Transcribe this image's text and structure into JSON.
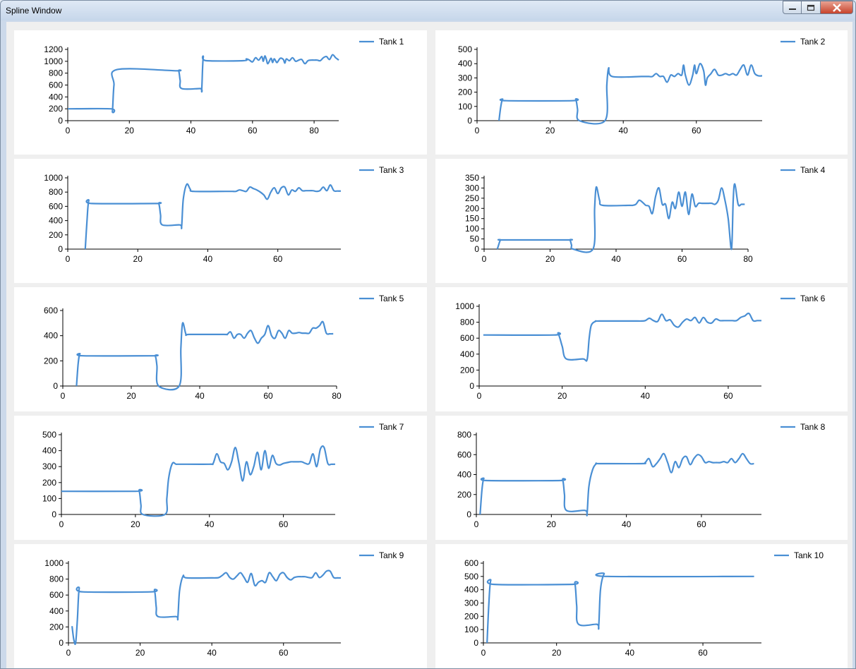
{
  "window": {
    "title": "Spline Window",
    "controls": {
      "minimize_icon": "minimize-icon",
      "maximize_icon": "maximize-icon",
      "close_icon": "close-icon"
    }
  },
  "colors": {
    "series": "#4a8fd4",
    "axis": "#000000",
    "panel": "#ffffff",
    "client": "#efefef"
  },
  "chart_data": [
    {
      "type": "line",
      "title": "",
      "series": [
        {
          "name": "Tank 1",
          "x": [
            0,
            14,
            14.5,
            15,
            16,
            35,
            36,
            36.5,
            37,
            43,
            43.5,
            44,
            45,
            57,
            58,
            59,
            60,
            61,
            62,
            63,
            63.5,
            64,
            64.5,
            65,
            66,
            66.5,
            67,
            67.5,
            68,
            69,
            70,
            70.5,
            71,
            72,
            73,
            74,
            75,
            76,
            77,
            78,
            79,
            80,
            81,
            82,
            83,
            84,
            85,
            86,
            87,
            88
          ],
          "y": [
            200,
            200,
            160,
            600,
            860,
            840,
            840,
            680,
            540,
            540,
            520,
            1060,
            1010,
            1010,
            1040,
            1020,
            990,
            1060,
            1020,
            1080,
            1000,
            1090,
            1030,
            960,
            1050,
            980,
            1040,
            1010,
            980,
            1050,
            1030,
            970,
            1040,
            1010,
            1060,
            1000,
            1020,
            1030,
            960,
            1010,
            1020,
            1020,
            1020,
            1010,
            1060,
            1080,
            1030,
            1110,
            1060,
            1020
          ]
        }
      ],
      "xlim": [
        0,
        88
      ],
      "ylim": [
        0,
        1200
      ],
      "xticks": [
        0,
        20,
        40,
        60,
        80
      ],
      "yticks": [
        0,
        200,
        400,
        600,
        800,
        1000,
        1200
      ]
    },
    {
      "type": "line",
      "title": "",
      "series": [
        {
          "name": "Tank 2",
          "x": [
            6,
            6.5,
            7,
            8,
            26,
            27,
            27.5,
            28,
            35,
            35.5,
            36,
            37,
            45,
            46,
            47,
            48,
            49,
            50,
            51,
            52,
            53,
            54,
            55,
            56,
            56.5,
            57,
            58,
            59,
            59.5,
            60,
            61,
            62,
            62.5,
            63,
            64,
            65,
            66,
            67,
            68,
            69,
            70,
            71,
            72,
            73,
            74,
            75,
            76,
            77,
            78
          ],
          "y": [
            0,
            100,
            150,
            140,
            140,
            150,
            80,
            0,
            0,
            250,
            370,
            310,
            310,
            310,
            310,
            310,
            330,
            310,
            310,
            270,
            320,
            310,
            330,
            320,
            390,
            320,
            250,
            320,
            390,
            330,
            400,
            350,
            250,
            300,
            330,
            360,
            320,
            320,
            330,
            320,
            330,
            320,
            360,
            390,
            320,
            390,
            330,
            315,
            315
          ]
        }
      ],
      "xlim": [
        0,
        78
      ],
      "ylim": [
        0,
        500
      ],
      "xticks": [
        0,
        20,
        40,
        60
      ],
      "yticks": [
        0,
        100,
        200,
        300,
        400,
        500
      ]
    },
    {
      "type": "line",
      "title": "",
      "series": [
        {
          "name": "Tank 3",
          "x": [
            5,
            5.5,
            6,
            7,
            25,
            26,
            26.5,
            27,
            32,
            32.5,
            33,
            34,
            35,
            36,
            45,
            46,
            47,
            48,
            49,
            50,
            51,
            52,
            53,
            54,
            55,
            56,
            57,
            58,
            59,
            60,
            61,
            62,
            63,
            64,
            65,
            66,
            67,
            68,
            69,
            70,
            71,
            72,
            73,
            74,
            75,
            76,
            77,
            78
          ],
          "y": [
            0,
            400,
            680,
            640,
            640,
            640,
            480,
            340,
            340,
            310,
            700,
            910,
            840,
            810,
            810,
            810,
            810,
            810,
            830,
            820,
            810,
            870,
            850,
            830,
            800,
            760,
            700,
            800,
            860,
            780,
            860,
            870,
            760,
            830,
            810,
            860,
            820,
            820,
            820,
            820,
            810,
            820,
            870,
            820,
            900,
            820,
            815,
            815
          ]
        }
      ],
      "xlim": [
        0,
        78
      ],
      "ylim": [
        0,
        1000
      ],
      "xticks": [
        0,
        20,
        40,
        60
      ],
      "yticks": [
        0,
        200,
        400,
        600,
        800,
        1000
      ]
    },
    {
      "type": "line",
      "title": "",
      "series": [
        {
          "name": "Tank 4",
          "x": [
            4,
            4.5,
            5,
            6,
            25,
            26,
            26.5,
            27,
            33,
            33.5,
            34,
            35,
            36,
            44,
            45,
            46,
            47,
            48,
            49,
            50,
            51,
            52,
            53,
            54,
            55,
            56,
            57,
            58,
            59,
            60,
            61,
            62,
            63,
            64,
            65,
            66,
            67,
            68,
            69,
            70,
            71,
            72,
            73,
            74,
            75,
            75.5,
            76,
            77,
            78,
            79
          ],
          "y": [
            0,
            25,
            45,
            45,
            45,
            45,
            20,
            0,
            0,
            200,
            305,
            240,
            215,
            215,
            215,
            220,
            240,
            230,
            215,
            210,
            175,
            260,
            300,
            220,
            220,
            150,
            230,
            200,
            280,
            210,
            280,
            170,
            270,
            210,
            225,
            225,
            225,
            225,
            225,
            220,
            240,
            300,
            240,
            150,
            0,
            240,
            320,
            220,
            220,
            220
          ]
        }
      ],
      "xlim": [
        0,
        80
      ],
      "ylim": [
        0,
        350
      ],
      "xticks": [
        0,
        20,
        40,
        60,
        80
      ],
      "yticks": [
        0,
        50,
        100,
        150,
        200,
        250,
        300,
        350
      ]
    },
    {
      "type": "line",
      "title": "",
      "series": [
        {
          "name": "Tank 5",
          "x": [
            4,
            4.5,
            5,
            6,
            26,
            27,
            27.5,
            28,
            34,
            34.5,
            35,
            36,
            37,
            47,
            48,
            49,
            50,
            51,
            52,
            53,
            54,
            55,
            56,
            57,
            58,
            59,
            60,
            61,
            62,
            63,
            64,
            65,
            66,
            67,
            68,
            69,
            70,
            71,
            72,
            73,
            74,
            75,
            76,
            77,
            78,
            79
          ],
          "y": [
            0,
            180,
            255,
            240,
            240,
            240,
            160,
            0,
            0,
            300,
            500,
            410,
            410,
            410,
            410,
            430,
            380,
            410,
            410,
            380,
            420,
            440,
            380,
            340,
            380,
            410,
            480,
            400,
            380,
            440,
            420,
            380,
            440,
            420,
            420,
            425,
            420,
            420,
            420,
            460,
            460,
            480,
            510,
            420,
            415,
            415
          ]
        }
      ],
      "xlim": [
        0,
        80
      ],
      "ylim": [
        0,
        600
      ],
      "xticks": [
        0,
        20,
        40,
        60,
        80
      ],
      "yticks": [
        0,
        200,
        400,
        600
      ]
    },
    {
      "type": "line",
      "title": "",
      "series": [
        {
          "name": "Tank 6",
          "x": [
            1,
            18,
            19,
            20,
            21,
            25,
            26,
            26.5,
            27,
            28,
            29,
            38,
            39,
            40,
            41,
            42,
            43,
            44,
            45,
            46,
            47,
            48,
            49,
            50,
            51,
            52,
            53,
            54,
            55,
            56,
            57,
            58,
            59,
            60,
            61,
            62,
            63,
            64,
            65,
            66,
            67,
            68
          ],
          "y": [
            640,
            640,
            660,
            500,
            340,
            340,
            330,
            600,
            760,
            810,
            815,
            815,
            815,
            820,
            850,
            820,
            810,
            900,
            820,
            830,
            760,
            740,
            800,
            840,
            820,
            860,
            790,
            860,
            800,
            790,
            840,
            820,
            820,
            820,
            820,
            820,
            860,
            880,
            910,
            820,
            820,
            820
          ]
        }
      ],
      "xlim": [
        0,
        68
      ],
      "ylim": [
        0,
        1000
      ],
      "xticks": [
        0,
        20,
        40,
        60
      ],
      "yticks": [
        0,
        200,
        400,
        600,
        800,
        1000
      ]
    },
    {
      "type": "line",
      "title": "",
      "series": [
        {
          "name": "Tank 7",
          "x": [
            0,
            20,
            21,
            21.5,
            22,
            28,
            28.5,
            29,
            30,
            31,
            32,
            40,
            41,
            42,
            43,
            44,
            45,
            46,
            47,
            48,
            49,
            50,
            51,
            52,
            53,
            54,
            55,
            56,
            57,
            58,
            59,
            60,
            61,
            62,
            63,
            64,
            65,
            66,
            67,
            68,
            69,
            70,
            71,
            72,
            73,
            74
          ],
          "y": [
            145,
            145,
            150,
            60,
            0,
            0,
            100,
            230,
            320,
            315,
            315,
            315,
            320,
            380,
            330,
            320,
            280,
            330,
            420,
            320,
            210,
            330,
            250,
            300,
            390,
            280,
            400,
            290,
            370,
            320,
            310,
            320,
            325,
            330,
            330,
            330,
            330,
            320,
            320,
            380,
            300,
            410,
            420,
            320,
            315,
            315
          ]
        }
      ],
      "xlim": [
        0,
        74
      ],
      "ylim": [
        0,
        500
      ],
      "xticks": [
        0,
        20,
        40,
        60
      ],
      "yticks": [
        0,
        100,
        200,
        300,
        400,
        500
      ]
    },
    {
      "type": "line",
      "title": "",
      "series": [
        {
          "name": "Tank 8",
          "x": [
            1,
            1.5,
            2,
            3,
            22,
            23,
            23.5,
            24,
            29,
            29.5,
            30,
            31,
            32,
            33,
            44,
            45,
            46,
            47,
            48,
            49,
            50,
            51,
            52,
            53,
            54,
            55,
            56,
            57,
            58,
            59,
            60,
            61,
            62,
            63,
            64,
            65,
            66,
            67,
            68,
            69,
            70,
            71,
            72,
            73,
            74
          ],
          "y": [
            0,
            250,
            360,
            340,
            340,
            350,
            200,
            40,
            40,
            0,
            280,
            450,
            510,
            510,
            510,
            520,
            560,
            480,
            510,
            560,
            610,
            520,
            420,
            530,
            470,
            560,
            580,
            500,
            560,
            600,
            580,
            520,
            530,
            520,
            520,
            520,
            530,
            520,
            560,
            520,
            560,
            610,
            560,
            510,
            510
          ]
        }
      ],
      "xlim": [
        0,
        76
      ],
      "ylim": [
        0,
        800
      ],
      "xticks": [
        0,
        20,
        40,
        60
      ],
      "yticks": [
        0,
        200,
        400,
        600,
        800
      ]
    },
    {
      "type": "line",
      "title": "",
      "series": [
        {
          "name": "Tank 9",
          "x": [
            1,
            1.5,
            2,
            2.5,
            3,
            4,
            23,
            24,
            24.5,
            25,
            30,
            30.5,
            31,
            32,
            33,
            40,
            41,
            42,
            43,
            44,
            45,
            46,
            47,
            48,
            49,
            50,
            51,
            52,
            53,
            54,
            55,
            56,
            57,
            58,
            59,
            60,
            61,
            62,
            63,
            64,
            65,
            66,
            67,
            68,
            69,
            70,
            71,
            72,
            73,
            74,
            75,
            76
          ],
          "y": [
            210,
            40,
            0,
            300,
            680,
            640,
            640,
            660,
            450,
            330,
            330,
            310,
            650,
            840,
            815,
            815,
            815,
            820,
            850,
            880,
            820,
            800,
            840,
            880,
            820,
            760,
            870,
            720,
            760,
            780,
            760,
            880,
            830,
            780,
            860,
            880,
            820,
            790,
            820,
            830,
            830,
            830,
            820,
            820,
            880,
            820,
            850,
            900,
            900,
            820,
            815,
            815
          ]
        }
      ],
      "xlim": [
        0,
        76
      ],
      "ylim": [
        0,
        1000
      ],
      "xticks": [
        0,
        20,
        40,
        60
      ],
      "yticks": [
        0,
        200,
        400,
        600,
        800,
        1000
      ]
    },
    {
      "type": "line",
      "title": "",
      "series": [
        {
          "name": "Tank 10",
          "x": [
            1,
            1.5,
            2,
            3,
            24,
            25,
            25.5,
            26,
            31,
            31.5,
            32,
            33,
            34,
            74
          ],
          "y": [
            0,
            300,
            470,
            440,
            440,
            450,
            280,
            140,
            140,
            120,
            400,
            520,
            500,
            500
          ]
        }
      ],
      "xlim": [
        0,
        76
      ],
      "ylim": [
        0,
        600
      ],
      "xticks": [
        0,
        20,
        40,
        60
      ],
      "yticks": [
        0,
        100,
        200,
        300,
        400,
        500,
        600
      ]
    }
  ]
}
